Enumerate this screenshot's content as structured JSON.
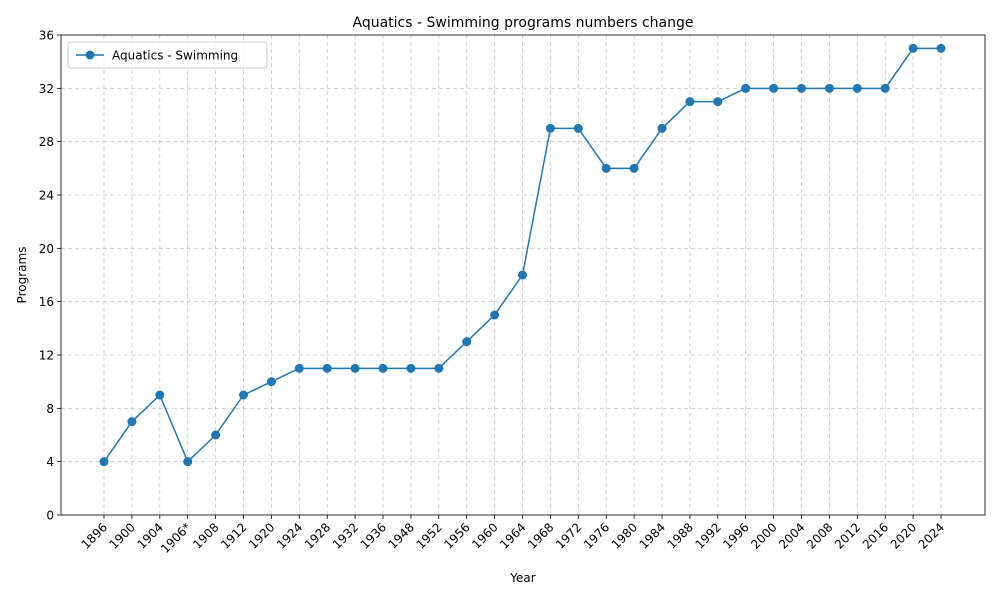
{
  "chart_data": {
    "type": "line",
    "title": "Aquatics - Swimming programs numbers change",
    "xlabel": "Year",
    "ylabel": "Programs",
    "categories": [
      "1896",
      "1900",
      "1904",
      "1906*",
      "1908",
      "1912",
      "1920",
      "1924",
      "1928",
      "1932",
      "1936",
      "1948",
      "1952",
      "1956",
      "1960",
      "1964",
      "1968",
      "1972",
      "1976",
      "1980",
      "1984",
      "1988",
      "1992",
      "1996",
      "2000",
      "2004",
      "2008",
      "2012",
      "2016",
      "2020",
      "2024"
    ],
    "series": [
      {
        "name": "Aquatics - Swimming",
        "values": [
          4,
          7,
          9,
          4,
          6,
          9,
          10,
          11,
          11,
          11,
          11,
          11,
          11,
          13,
          15,
          18,
          29,
          29,
          26,
          26,
          29,
          31,
          31,
          32,
          32,
          32,
          32,
          32,
          32,
          35,
          35
        ],
        "color": "#1f77b4",
        "marker": "circle"
      }
    ],
    "ylim": [
      0,
      36
    ],
    "yticks": [
      0,
      4,
      8,
      12,
      16,
      20,
      24,
      28,
      32,
      36
    ],
    "grid": true,
    "grid_style": "dashed",
    "legend_position": "top-left",
    "xtick_rotation": "45°"
  }
}
